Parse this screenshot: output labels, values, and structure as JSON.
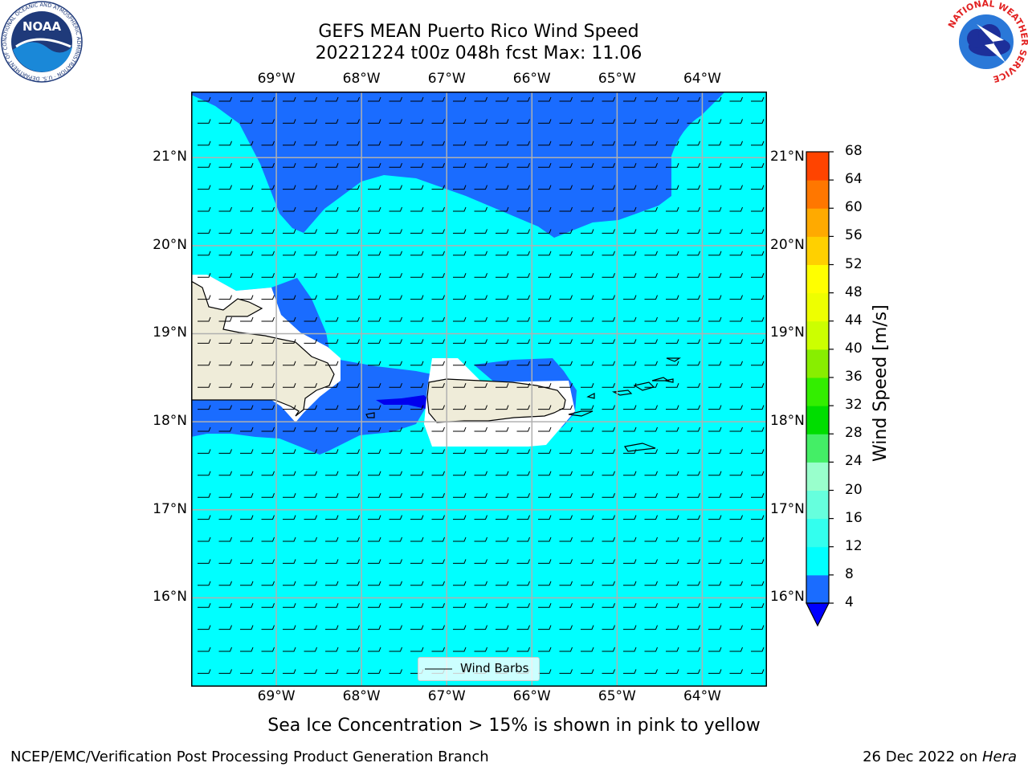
{
  "title": {
    "line1": "GEFS MEAN Puerto Rico Wind Speed",
    "line2": "20221224 t00z 048h fcst   Max: 11.06"
  },
  "map": {
    "lon_labels": [
      "69°W",
      "68°W",
      "67°W",
      "66°W",
      "65°W",
      "64°W"
    ],
    "lat_labels": [
      "21°N",
      "20°N",
      "19°N",
      "18°N",
      "17°N",
      "16°N"
    ],
    "lon_values": [
      -69,
      -68,
      -67,
      -66,
      -65,
      -64
    ],
    "lat_values": [
      21,
      20,
      19,
      18,
      17,
      16
    ],
    "extent": {
      "lon_min": -70.0,
      "lon_max": -63.25,
      "lat_min": 15.0,
      "lat_max": 21.75
    },
    "legend_label": "Wind Barbs",
    "barb_direction": "easterly"
  },
  "colorbar": {
    "title": "Wind Speed [m/s]",
    "levels": [
      4,
      8,
      12,
      16,
      20,
      24,
      28,
      32,
      36,
      40,
      44,
      48,
      52,
      56,
      60,
      64,
      68
    ],
    "colors": [
      "#1a6cff",
      "#00ffff",
      "#33ffee",
      "#66ffdd",
      "#99ffcc",
      "#44ee66",
      "#00dd00",
      "#33ee00",
      "#88ee00",
      "#ccff00",
      "#eeff00",
      "#ffff00",
      "#ffd000",
      "#ffaa00",
      "#ff7700",
      "#ff4400",
      "#ff0000"
    ],
    "under_color": "#0000ff"
  },
  "palette": {
    "calm_blue": "#1a6cff",
    "cyan": "#00ffff",
    "deep_blue": "#0000ee",
    "land": "#efecd9",
    "grid": "#b0b0b0"
  },
  "caption": "Sea Ice Concentration > 15% is shown in pink to yellow",
  "footer": {
    "left": "NCEP/EMC/Verification Post Processing Product Generation Branch",
    "right_prefix": "26 Dec 2022 on ",
    "right_host": "Hera"
  },
  "logos": {
    "noaa_text": "NOAA",
    "noaa_ring": "NATIONAL OCEANIC AND ATMOSPHERIC ADMINISTRATION · U.S. DEPARTMENT OF COMMERCE",
    "nws_ring": "NATIONAL WEATHER SERVICE"
  }
}
